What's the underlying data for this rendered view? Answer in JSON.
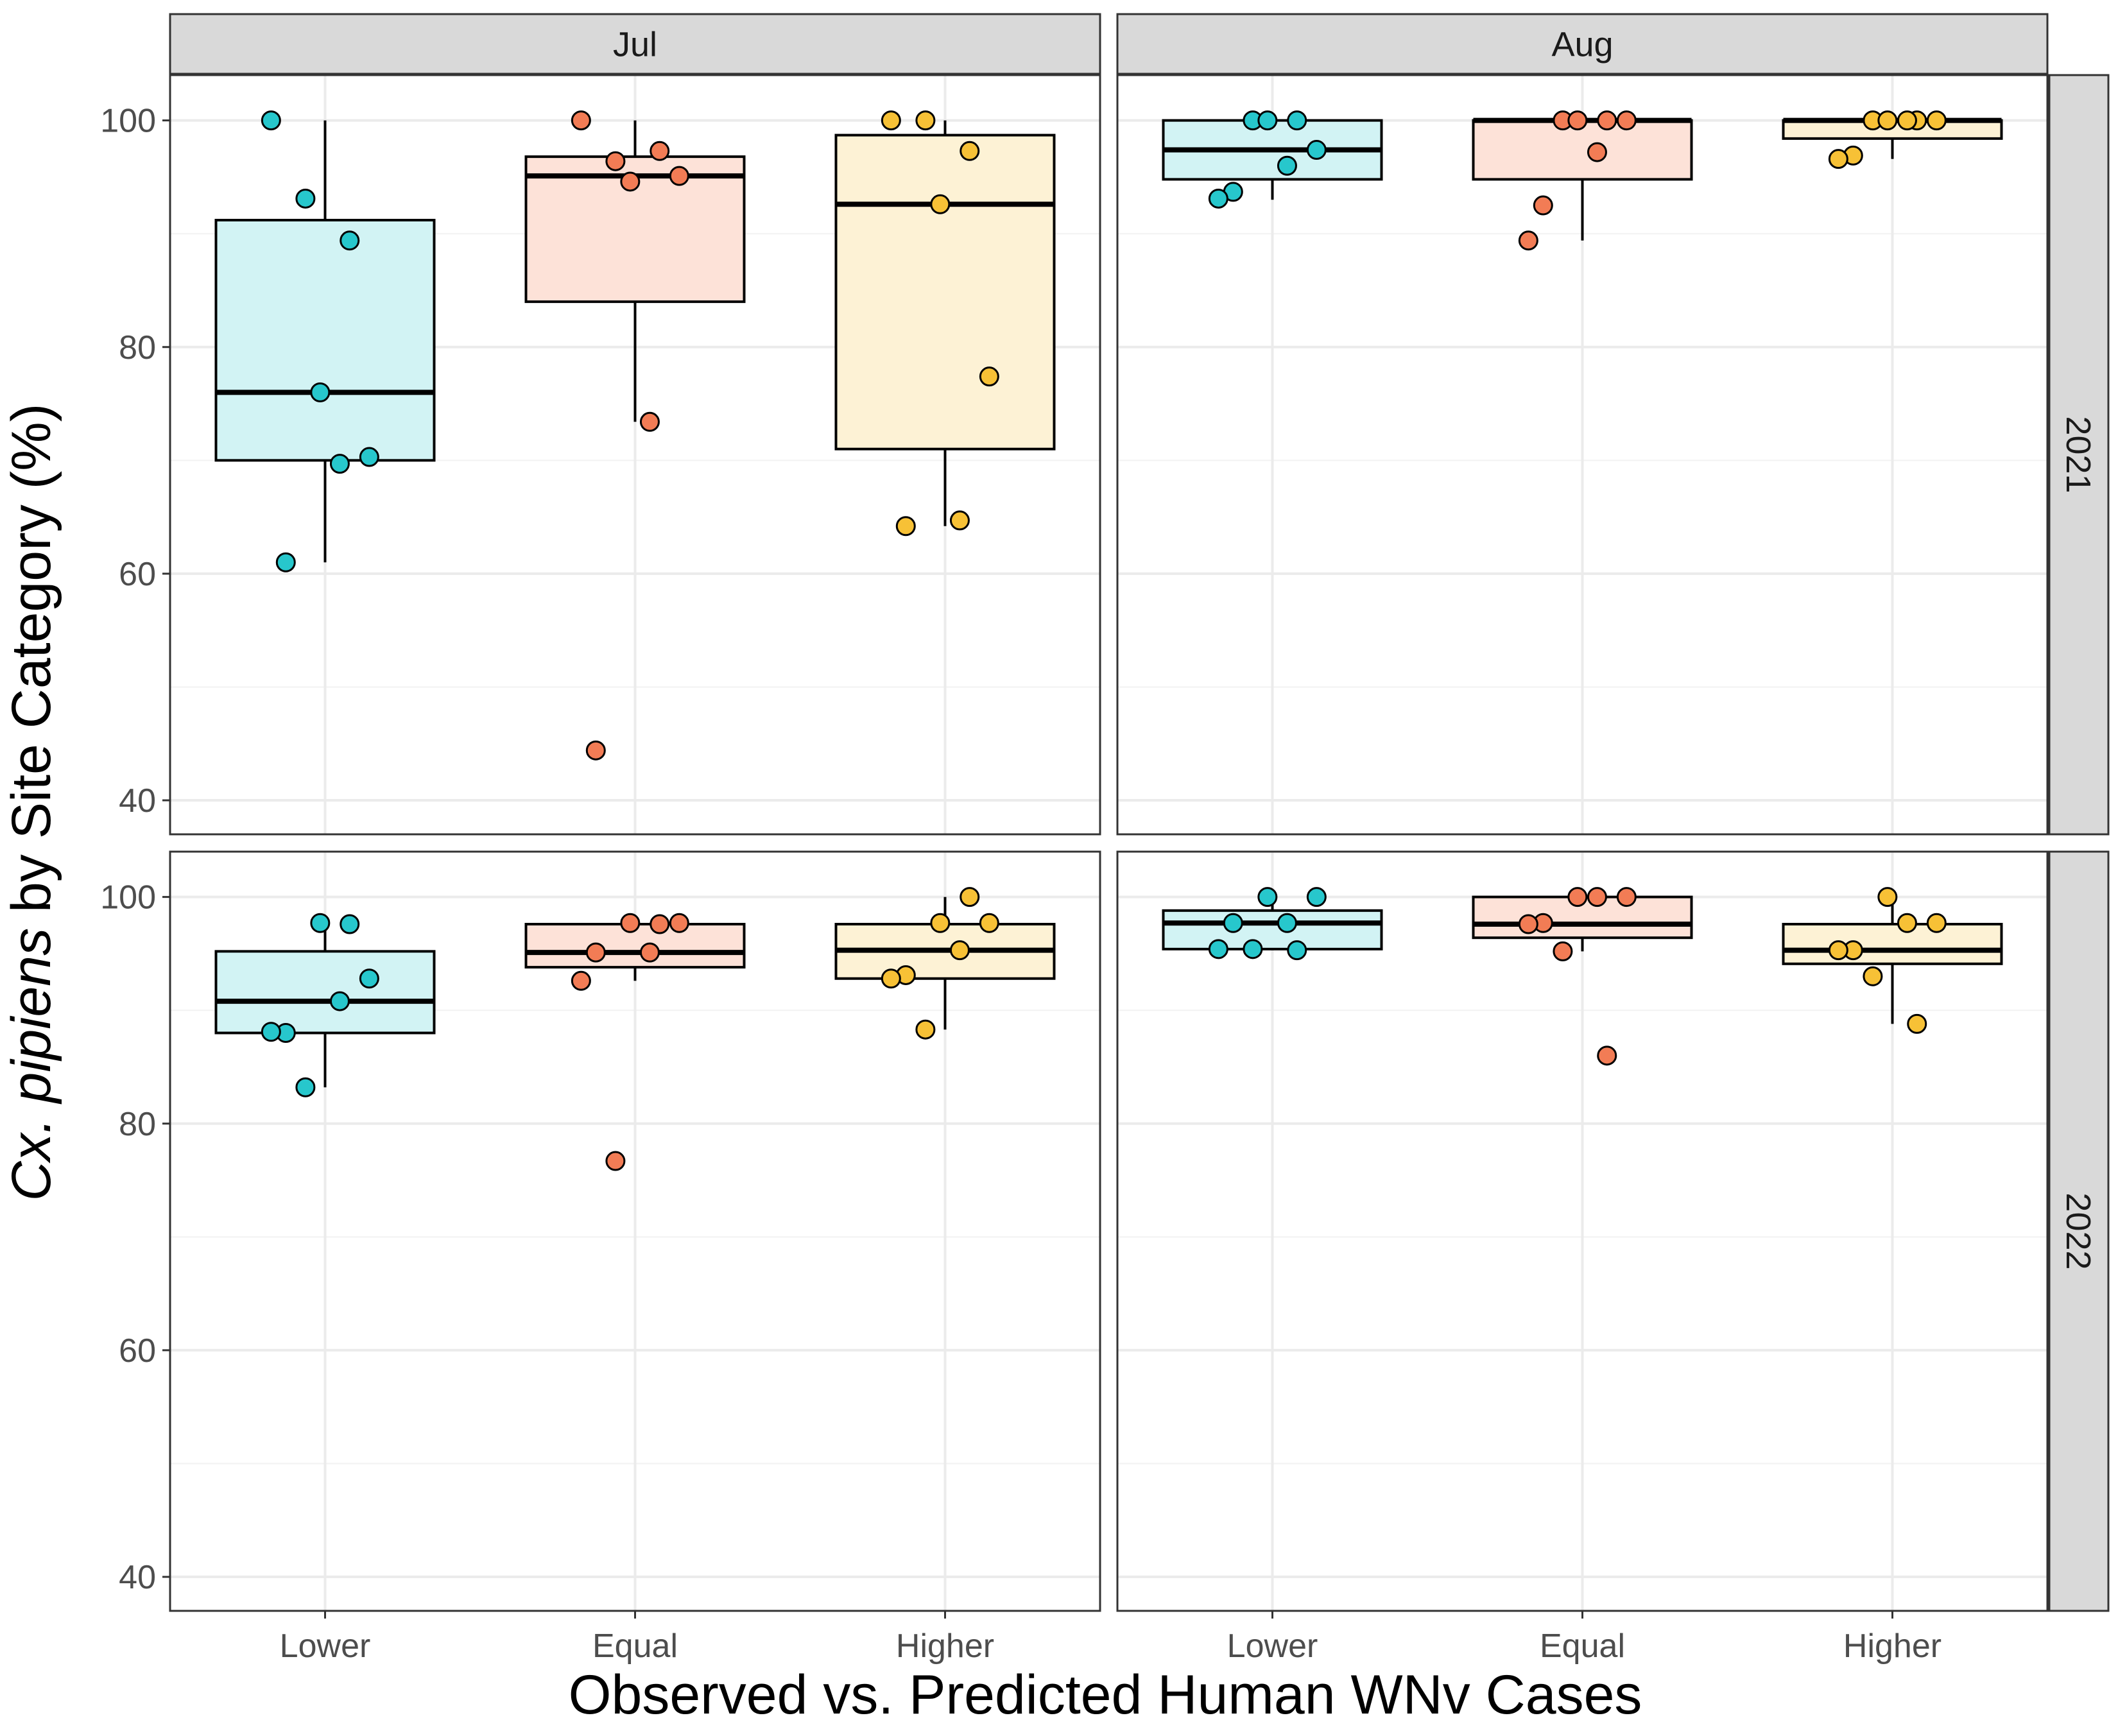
{
  "chart_data": {
    "type": "box",
    "xlabel": "Observed vs. Predicted Human WNv Cases",
    "ylabel": {
      "italic": "Cx. pipiens",
      "rest": " by Site Category (%)"
    },
    "categories": [
      "Lower",
      "Equal",
      "Higher"
    ],
    "y_ticks": [
      40,
      60,
      80,
      100
    ],
    "ylim": [
      37,
      104
    ],
    "grid": true,
    "column_facets": [
      "Jul",
      "Aug"
    ],
    "row_facets": [
      "2021",
      "2022"
    ],
    "colors": {
      "Lower": {
        "fill": "#d2f3f4",
        "point": "#27c7cc"
      },
      "Equal": {
        "fill": "#fde2d8",
        "point": "#f27c55"
      },
      "Higher": {
        "fill": "#fdf2d5",
        "point": "#f7c136"
      }
    },
    "panels": [
      {
        "month": "Jul",
        "year": "2021",
        "boxes": [
          {
            "category": "Lower",
            "q1": 70,
            "median": 76,
            "q3": 91.2,
            "whisker_low": 61,
            "whisker_high": 100,
            "points": [
              100,
              93.1,
              89.4,
              76,
              70.3,
              69.7,
              61
            ]
          },
          {
            "category": "Equal",
            "q1": 84,
            "median": 95.1,
            "q3": 96.8,
            "whisker_low": 73.4,
            "whisker_high": 100,
            "points": [
              100,
              96.4,
              97.3,
              94.6,
              95.1,
              73.4,
              44.4
            ]
          },
          {
            "category": "Higher",
            "q1": 71,
            "median": 92.6,
            "q3": 98.7,
            "whisker_low": 64.2,
            "whisker_high": 100,
            "points": [
              100,
              100,
              97.3,
              92.6,
              77.4,
              64.7,
              64.2
            ]
          }
        ]
      },
      {
        "month": "Aug",
        "year": "2021",
        "boxes": [
          {
            "category": "Lower",
            "q1": 94.8,
            "median": 97.4,
            "q3": 100,
            "whisker_low": 93,
            "whisker_high": 100,
            "points": [
              100,
              100,
              100,
              97.4,
              96,
              93.7,
              93.1
            ]
          },
          {
            "category": "Equal",
            "q1": 94.8,
            "median": 100,
            "q3": 100,
            "whisker_low": 89.4,
            "whisker_high": 100,
            "points": [
              100,
              100,
              100,
              100,
              97.2,
              92.5,
              89.4
            ]
          },
          {
            "category": "Higher",
            "q1": 98.4,
            "median": 100,
            "q3": 100,
            "whisker_low": 96.6,
            "whisker_high": 100,
            "points": [
              100,
              100,
              100,
              100,
              100,
              96.9,
              96.6
            ]
          }
        ]
      },
      {
        "month": "Jul",
        "year": "2022",
        "boxes": [
          {
            "category": "Lower",
            "q1": 88,
            "median": 90.8,
            "q3": 95.2,
            "whisker_low": 83.2,
            "whisker_high": 97.6,
            "points": [
              97.6,
              97.7,
              92.8,
              90.8,
              88,
              88.1,
              83.2
            ]
          },
          {
            "category": "Equal",
            "q1": 93.8,
            "median": 95.1,
            "q3": 97.6,
            "whisker_low": 92.6,
            "whisker_high": 97.7,
            "points": [
              97.6,
              97.7,
              97.7,
              95.1,
              95.1,
              92.6,
              76.7
            ]
          },
          {
            "category": "Higher",
            "q1": 92.8,
            "median": 95.3,
            "q3": 97.6,
            "whisker_low": 88.3,
            "whisker_high": 100,
            "points": [
              100,
              97.7,
              97.7,
              95.3,
              93.1,
              92.8,
              88.3
            ]
          }
        ]
      },
      {
        "month": "Aug",
        "year": "2022",
        "boxes": [
          {
            "category": "Lower",
            "q1": 95.4,
            "median": 97.7,
            "q3": 98.8,
            "whisker_low": 95.3,
            "whisker_high": 100,
            "points": [
              100,
              100,
              97.7,
              97.7,
              95.4,
              95.4,
              95.3
            ]
          },
          {
            "category": "Equal",
            "q1": 96.4,
            "median": 97.6,
            "q3": 100,
            "whisker_low": 95.2,
            "whisker_high": 100,
            "points": [
              100,
              100,
              100,
              97.7,
              97.6,
              95.2,
              86
            ]
          },
          {
            "category": "Higher",
            "q1": 94.1,
            "median": 95.3,
            "q3": 97.6,
            "whisker_low": 88.8,
            "whisker_high": 100,
            "points": [
              100,
              97.7,
              97.7,
              95.3,
              95.3,
              93,
              88.8
            ]
          }
        ]
      }
    ]
  }
}
